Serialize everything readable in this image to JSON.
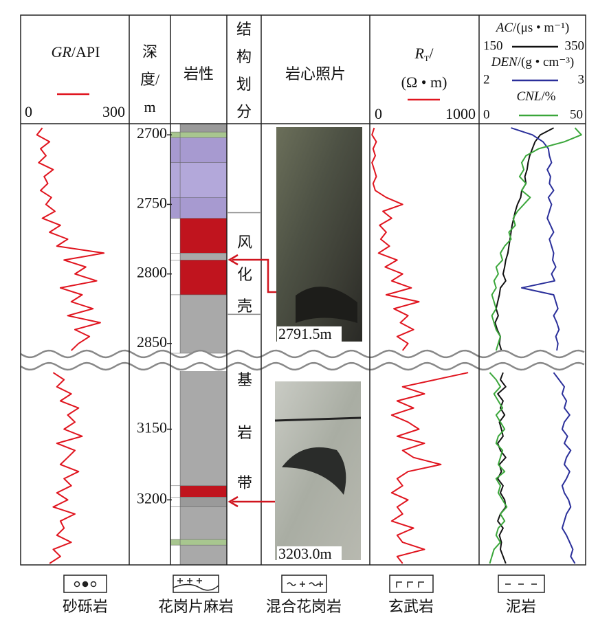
{
  "tracks": {
    "gr": {
      "name": "GR",
      "unit": "/API",
      "color": "#e0141e",
      "xlim": [
        0,
        300
      ],
      "ticks": [
        0,
        300
      ]
    },
    "depth": {
      "title": [
        "深",
        "度/",
        "m"
      ]
    },
    "lithology": {
      "title": "岩性"
    },
    "structure": {
      "title": [
        "结",
        "构",
        "划",
        "分"
      ]
    },
    "core": {
      "title": "岩心照片"
    },
    "rt": {
      "name": "R",
      "sub": "T",
      "slash": "/",
      "unit": "(Ω • m)",
      "color": "#e0141e",
      "xlim": [
        0,
        1000
      ],
      "ticks": [
        0,
        1000
      ]
    },
    "ac": {
      "name": "AC",
      "unit": "/(μs • m⁻¹)",
      "color": "#111111",
      "xlim": [
        150,
        350
      ],
      "ticks": [
        150,
        350
      ]
    },
    "den": {
      "name": "DEN",
      "unit": "/(g • cm⁻³)",
      "color": "#2a2f9a",
      "xlim": [
        2,
        3
      ],
      "ticks": [
        2,
        3
      ]
    },
    "cnl": {
      "name": "CNL",
      "unit": "/%",
      "color": "#3aa63a",
      "xlim": [
        0,
        50
      ],
      "ticks": [
        0,
        50
      ]
    }
  },
  "segments": [
    {
      "ylim": [
        2692,
        2857
      ],
      "yticks": [
        2700,
        2750,
        2800,
        2850
      ],
      "depth": [
        2695,
        2700,
        2705,
        2710,
        2715,
        2720,
        2725,
        2730,
        2735,
        2740,
        2745,
        2750,
        2755,
        2760,
        2765,
        2770,
        2775,
        2780,
        2785,
        2790,
        2795,
        2800,
        2805,
        2810,
        2815,
        2820,
        2825,
        2830,
        2835,
        2840,
        2845,
        2850,
        2855
      ],
      "gr": [
        60,
        45,
        80,
        55,
        70,
        50,
        90,
        65,
        75,
        55,
        85,
        70,
        95,
        60,
        110,
        80,
        130,
        100,
        230,
        120,
        180,
        150,
        210,
        110,
        170,
        140,
        200,
        130,
        220,
        150,
        190,
        160,
        140
      ],
      "rt": [
        40,
        20,
        60,
        30,
        50,
        20,
        40,
        60,
        30,
        50,
        150,
        300,
        120,
        200,
        90,
        150,
        100,
        180,
        80,
        250,
        140,
        300,
        200,
        380,
        150,
        450,
        220,
        350,
        280,
        400,
        250,
        350,
        300
      ],
      "ac": [
        290,
        265,
        255,
        250,
        245,
        242,
        240,
        236,
        238,
        230,
        228,
        222,
        218,
        215,
        212,
        210,
        208,
        206,
        204,
        200,
        198,
        195,
        200,
        190,
        188,
        185,
        182,
        186,
        180,
        184,
        190,
        188,
        192
      ],
      "den": [
        2.3,
        2.5,
        2.6,
        2.65,
        2.66,
        2.68,
        2.64,
        2.67,
        2.66,
        2.7,
        2.65,
        2.68,
        2.66,
        2.64,
        2.67,
        2.7,
        2.66,
        2.68,
        2.7,
        2.69,
        2.72,
        2.68,
        2.71,
        2.4,
        2.7,
        2.72,
        2.74,
        2.7,
        2.73,
        2.75,
        2.72,
        2.74,
        2.73
      ],
      "cnl": [
        45,
        48,
        40,
        28,
        22,
        20,
        21,
        19,
        22,
        20,
        24,
        21,
        18,
        16,
        17,
        14,
        15,
        12,
        10,
        11,
        8,
        9,
        7,
        8,
        6,
        7,
        8,
        6,
        7,
        8,
        10,
        9,
        8
      ],
      "lithology": [
        {
          "top": 2692,
          "bottom": 2698,
          "color": "#9a9a9a"
        },
        {
          "top": 2698,
          "bottom": 2702,
          "color": "#a8c68f"
        },
        {
          "top": 2702,
          "bottom": 2720,
          "color": "#a79ad0"
        },
        {
          "top": 2720,
          "bottom": 2745,
          "color": "#b3a8da"
        },
        {
          "top": 2745,
          "bottom": 2760,
          "color": "#a79ad0"
        },
        {
          "top": 2760,
          "bottom": 2785,
          "color": "#c0141e"
        },
        {
          "top": 2785,
          "bottom": 2790,
          "color": "#a9a9a9"
        },
        {
          "top": 2790,
          "bottom": 2815,
          "color": "#c0141e"
        },
        {
          "top": 2815,
          "bottom": 2857,
          "color": "#a9a9a9"
        }
      ],
      "zone": {
        "label": [
          "风",
          "化",
          "壳"
        ],
        "top": 2756,
        "bottom": 2829
      },
      "photo": "2791.5m"
    },
    {
      "ylim": [
        3106,
        3246
      ],
      "yticks": [
        3150,
        3200
      ],
      "depth": [
        3110,
        3115,
        3120,
        3125,
        3130,
        3135,
        3140,
        3145,
        3150,
        3155,
        3160,
        3165,
        3170,
        3175,
        3180,
        3185,
        3190,
        3195,
        3200,
        3205,
        3210,
        3215,
        3220,
        3225,
        3230,
        3235,
        3240,
        3245
      ],
      "gr": [
        90,
        120,
        100,
        140,
        110,
        160,
        130,
        150,
        120,
        170,
        100,
        150,
        130,
        110,
        160,
        120,
        140,
        100,
        130,
        90,
        150,
        110,
        120,
        100,
        140,
        90,
        110,
        80
      ],
      "rt": [
        900,
        600,
        300,
        500,
        250,
        400,
        200,
        350,
        450,
        250,
        500,
        300,
        400,
        650,
        350,
        250,
        300,
        200,
        350,
        250,
        300,
        200,
        400,
        250,
        300,
        500,
        250,
        300
      ],
      "ac": [
        195,
        190,
        200,
        185,
        195,
        190,
        198,
        188,
        192,
        195,
        185,
        190,
        200,
        188,
        192,
        185,
        195,
        190,
        198,
        200,
        190,
        185,
        195,
        188,
        192,
        190,
        195,
        200
      ],
      "den": [
        2.7,
        2.75,
        2.8,
        2.78,
        2.82,
        2.8,
        2.85,
        2.8,
        2.78,
        2.83,
        2.8,
        2.86,
        2.82,
        2.8,
        2.85,
        2.82,
        2.78,
        2.8,
        2.84,
        2.86,
        2.82,
        2.8,
        2.78,
        2.82,
        2.85,
        2.88,
        2.86,
        2.9
      ],
      "cnl": [
        5,
        8,
        10,
        7,
        9,
        11,
        8,
        10,
        12,
        9,
        8,
        11,
        10,
        9,
        12,
        8,
        10,
        9,
        11,
        13,
        10,
        12,
        9,
        8,
        10,
        7,
        6,
        5
      ],
      "lithology": [
        {
          "top": 3106,
          "bottom": 3190,
          "color": "#a9a9a9"
        },
        {
          "top": 3190,
          "bottom": 3198,
          "color": "#c0141e"
        },
        {
          "top": 3198,
          "bottom": 3205,
          "color": "#9a9a9a"
        },
        {
          "top": 3205,
          "bottom": 3228,
          "color": "#a9a9a9"
        },
        {
          "top": 3228,
          "bottom": 3232,
          "color": "#a8c68f"
        },
        {
          "top": 3232,
          "bottom": 3246,
          "color": "#a9a9a9"
        }
      ],
      "zone": {
        "label": [
          "基",
          "岩",
          "带"
        ]
      },
      "photo": "3203.0m"
    }
  ],
  "legend": [
    "砂砾岩",
    "花岗片麻岩",
    "混合花岗岩",
    "玄武岩",
    "泥岩"
  ]
}
